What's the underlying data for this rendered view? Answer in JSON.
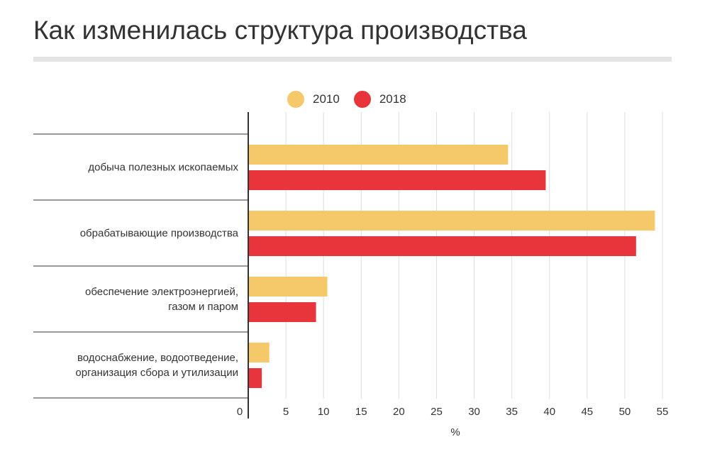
{
  "title": "Как изменилась структура производства",
  "colors": {
    "s2010": "#f5c96a",
    "s2018": "#e8353b",
    "grid": "#dddddd",
    "axis": "#333333"
  },
  "chart_data": {
    "type": "bar",
    "orientation": "horizontal",
    "categories": [
      [
        "добыча полезных ископаемых"
      ],
      [
        "обрабатывающие производства"
      ],
      [
        "обеспечение электроэнергией,",
        "газом и паром"
      ],
      [
        "водоснабжение, водоотведение,",
        "организация сбора и утилизации"
      ]
    ],
    "series": [
      {
        "name": "2010",
        "values": [
          34.5,
          54,
          10.5,
          2.8
        ]
      },
      {
        "name": "2018",
        "values": [
          39.5,
          51.5,
          9,
          1.8
        ]
      }
    ],
    "xlabel": "%",
    "xlim": [
      0,
      55
    ],
    "xticks": [
      0,
      5,
      10,
      15,
      20,
      25,
      30,
      35,
      40,
      45,
      50,
      55
    ],
    "grid": true,
    "legend": "top"
  }
}
